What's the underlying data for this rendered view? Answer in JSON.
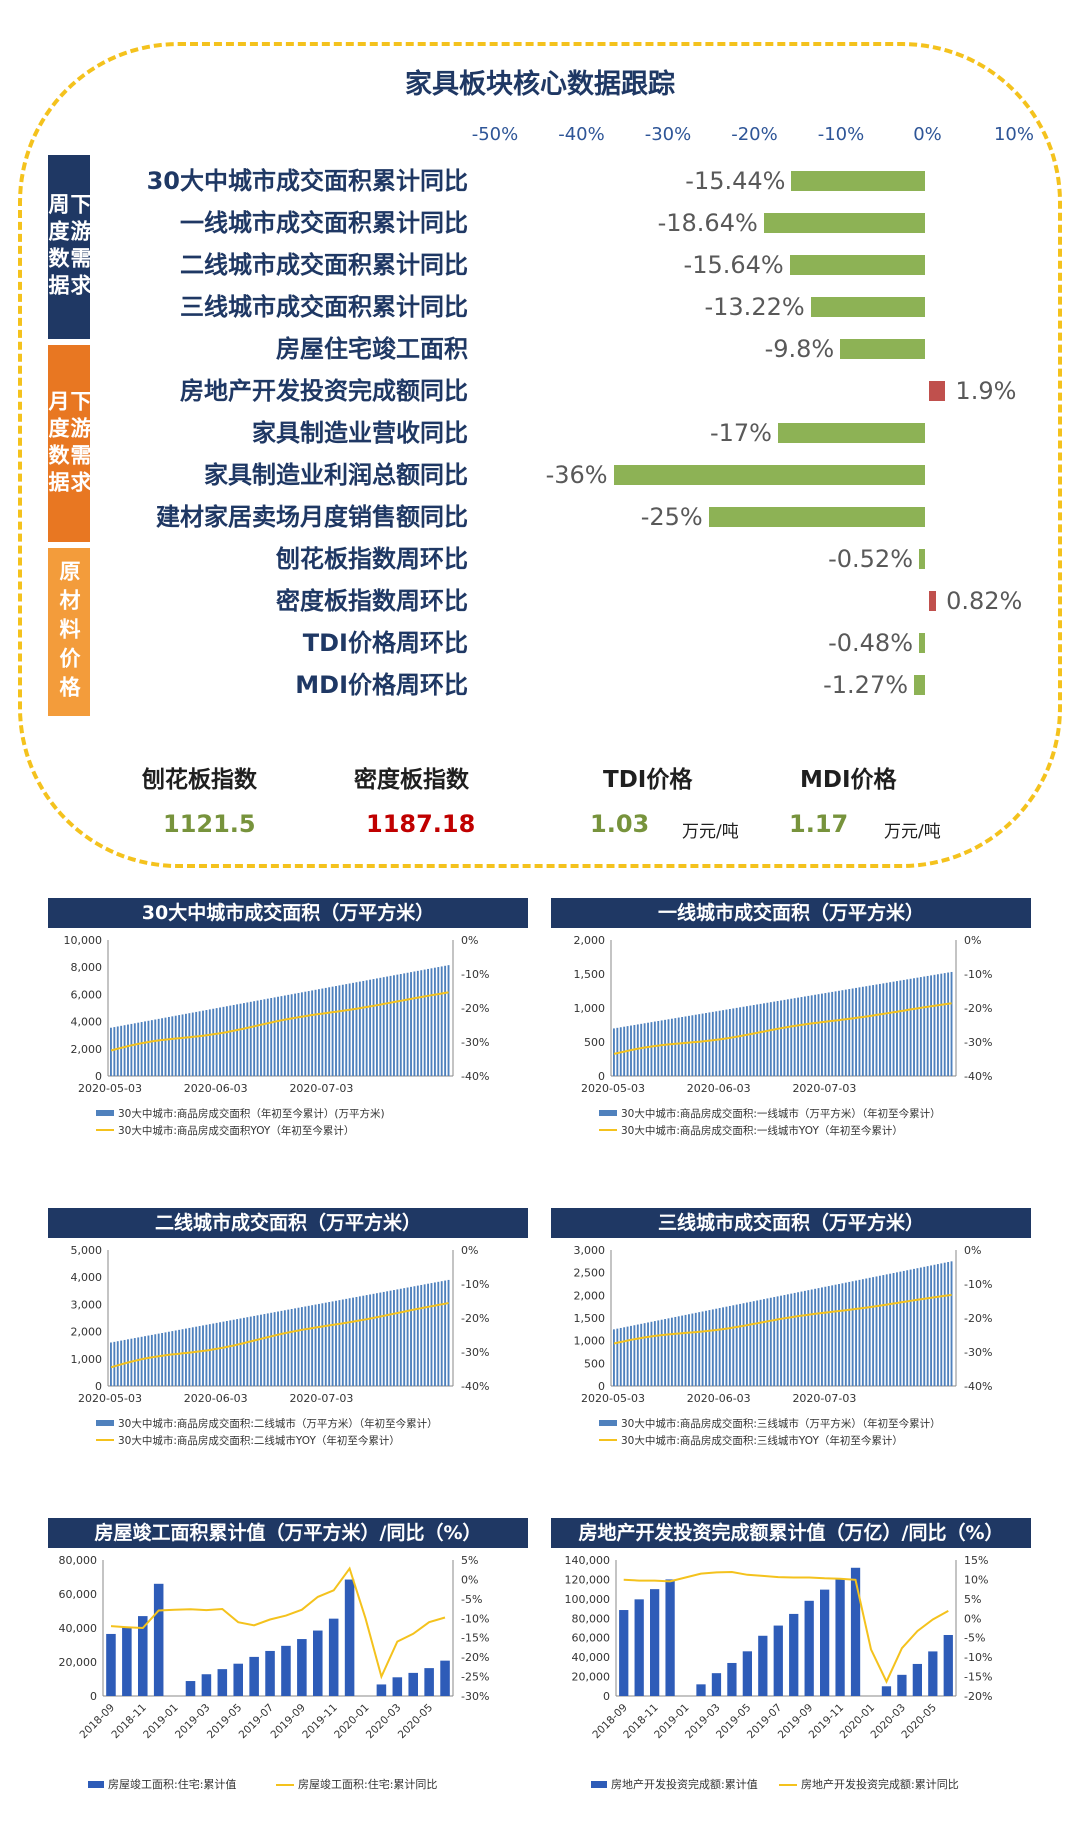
{
  "dashboard": {
    "title": "家具板块核心数据跟踪",
    "axis_ticks": [
      "-50%",
      "-40%",
      "-30%",
      "-20%",
      "-10%",
      "0%",
      "10%"
    ],
    "categories": [
      {
        "label": "周度数据",
        "label2": "下游需求",
        "color": "#1f3864"
      },
      {
        "label": "月度数据",
        "label2": "下游需求",
        "color": "#e87722"
      },
      {
        "label": "原材料价格",
        "color": "#f39c3b"
      }
    ],
    "rows": [
      {
        "label": "30大中城市成交面积累计同比",
        "value": -15.44,
        "text": "-15.44%"
      },
      {
        "label": "一线城市成交面积累计同比",
        "value": -18.64,
        "text": "-18.64%"
      },
      {
        "label": "二线城市成交面积累计同比",
        "value": -15.64,
        "text": "-15.64%"
      },
      {
        "label": "三线城市成交面积累计同比",
        "value": -13.22,
        "text": "-13.22%"
      },
      {
        "label": "房屋住宅竣工面积",
        "value": -9.8,
        "text": "-9.8%"
      },
      {
        "label": "房地产开发投资完成额同比",
        "value": 1.9,
        "text": "1.9%"
      },
      {
        "label": "家具制造业营收同比",
        "value": -17,
        "text": "-17%"
      },
      {
        "label": "家具制造业利润总额同比",
        "value": -36,
        "text": "-36%"
      },
      {
        "label": "建材家居卖场月度销售额同比",
        "value": -25,
        "text": "-25%"
      },
      {
        "label": "刨花板指数周环比",
        "value": -0.52,
        "text": "-0.52%"
      },
      {
        "label": "密度板指数周环比",
        "value": 0.82,
        "text": "0.82%"
      },
      {
        "label": "TDI价格周环比",
        "value": -0.48,
        "text": "-0.48%"
      },
      {
        "label": "MDI价格周环比",
        "value": -1.27,
        "text": "-1.27%"
      }
    ],
    "prices": [
      {
        "label": "刨花板指数",
        "value": "1121.5",
        "unit": "",
        "color": "#77933c"
      },
      {
        "label": "密度板指数",
        "value": "1187.18",
        "unit": "",
        "color": "#c00000"
      },
      {
        "label": "TDI价格",
        "value": "1.03",
        "unit": "万元/吨",
        "color": "#77933c"
      },
      {
        "label": "MDI价格",
        "value": "1.17",
        "unit": "万元/吨",
        "color": "#77933c"
      }
    ]
  },
  "chart_data": [
    {
      "type": "bar",
      "title": "30大中城市成交面积（万平方米）",
      "x_ticks": [
        "2020-05-03",
        "2020-06-03",
        "2020-07-03"
      ],
      "y_left_ticks": [
        "0",
        "2,000",
        "4,000",
        "6,000",
        "8,000",
        "10,000"
      ],
      "y_right_ticks": [
        "0%",
        "-10%",
        "-20%",
        "-30%",
        "-40%"
      ],
      "ylim_left": [
        0,
        10000
      ],
      "ylim_right": [
        -40,
        0
      ],
      "bar_color": "#4f81bd",
      "line_color": "#f4c21d",
      "n_days": 100,
      "series": [
        {
          "name": "30大中城市:商品房成交面积（年初至今累计）(万平方米)",
          "kind": "bar",
          "start": 3550,
          "end": 8150
        },
        {
          "name": "30大中城市:商品房成交面积YOY（年初至今累计）",
          "kind": "line",
          "start": -32.5,
          "end": -15.4
        }
      ]
    },
    {
      "type": "bar",
      "title": "一线城市成交面积（万平方米）",
      "x_ticks": [
        "2020-05-03",
        "2020-06-03",
        "2020-07-03"
      ],
      "y_left_ticks": [
        "0",
        "500",
        "1,000",
        "1,500",
        "2,000"
      ],
      "y_right_ticks": [
        "0%",
        "-10%",
        "-20%",
        "-30%",
        "-40%"
      ],
      "ylim_left": [
        0,
        2000
      ],
      "ylim_right": [
        -40,
        0
      ],
      "bar_color": "#4f81bd",
      "line_color": "#f4c21d",
      "n_days": 100,
      "series": [
        {
          "name": "30大中城市:商品房成交面积:一线城市（万平方米）（年初至今累计）",
          "kind": "bar",
          "start": 700,
          "end": 1530
        },
        {
          "name": "30大中城市:商品房成交面积:一线城市YOY（年初至今累计）",
          "kind": "line",
          "start": -33.5,
          "end": -18.6
        }
      ]
    },
    {
      "type": "bar",
      "title": "二线城市成交面积（万平方米）",
      "x_ticks": [
        "2020-05-03",
        "2020-06-03",
        "2020-07-03"
      ],
      "y_left_ticks": [
        "0",
        "1,000",
        "2,000",
        "3,000",
        "4,000",
        "5,000"
      ],
      "y_right_ticks": [
        "0%",
        "-10%",
        "-20%",
        "-30%",
        "-40%"
      ],
      "ylim_left": [
        0,
        5000
      ],
      "ylim_right": [
        -40,
        0
      ],
      "bar_color": "#4f81bd",
      "line_color": "#f4c21d",
      "n_days": 100,
      "series": [
        {
          "name": "30大中城市:商品房成交面积:二线城市（万平方米）（年初至今累计）",
          "kind": "bar",
          "start": 1600,
          "end": 3900
        },
        {
          "name": "30大中城市:商品房成交面积:二线城市YOY（年初至今累计）",
          "kind": "line",
          "start": -34.5,
          "end": -15.6
        }
      ]
    },
    {
      "type": "bar",
      "title": "三线城市成交面积（万平方米）",
      "x_ticks": [
        "2020-05-03",
        "2020-06-03",
        "2020-07-03"
      ],
      "y_left_ticks": [
        "0",
        "500",
        "1,000",
        "1,500",
        "2,000",
        "2,500",
        "3,000"
      ],
      "y_right_ticks": [
        "0%",
        "-10%",
        "-20%",
        "-30%",
        "-40%"
      ],
      "ylim_left": [
        0,
        3000
      ],
      "ylim_right": [
        -40,
        0
      ],
      "bar_color": "#4f81bd",
      "line_color": "#f4c21d",
      "n_days": 100,
      "series": [
        {
          "name": "30大中城市:商品房成交面积:三线城市（万平方米）（年初至今累计）",
          "kind": "bar",
          "start": 1250,
          "end": 2750
        },
        {
          "name": "30大中城市:商品房成交面积:三线城市YOY（年初至今累计）",
          "kind": "line",
          "start": -27.5,
          "end": -13.2
        }
      ]
    },
    {
      "type": "bar",
      "title": "房屋竣工面积累计值（万平方米）/同比（%）",
      "categories": [
        "2018-09",
        "2018-10",
        "2018-11",
        "2018-12",
        "2019-01",
        "2019-02",
        "2019-03",
        "2019-04",
        "2019-05",
        "2019-06",
        "2019-07",
        "2019-08",
        "2019-09",
        "2019-10",
        "2019-11",
        "2019-12",
        "2020-01",
        "2020-02",
        "2020-03",
        "2020-04",
        "2020-05",
        "2020-06"
      ],
      "x_ticks": [
        "2018-09",
        "2018-11",
        "2019-01",
        "2019-03",
        "2019-05",
        "2019-07",
        "2019-09",
        "2019-11",
        "2020-01",
        "2020-03",
        "2020-05"
      ],
      "y_left_ticks": [
        "0",
        "20,000",
        "40,000",
        "60,000",
        "80,000"
      ],
      "y_right_ticks": [
        "5%",
        "0%",
        "-5%",
        "-10%",
        "-15%",
        "-20%",
        "-25%",
        "-30%"
      ],
      "ylim_left": [
        0,
        80000
      ],
      "ylim_right": [
        -30,
        5
      ],
      "bar_color": "#2e5cb8",
      "line_color": "#f4c21d",
      "series": [
        {
          "name": "房屋竣工面积:住宅:累计值",
          "kind": "bar",
          "values": [
            36500,
            40500,
            47000,
            66000,
            null,
            8800,
            12800,
            15800,
            19000,
            23000,
            26500,
            29500,
            33500,
            38500,
            45500,
            68500,
            null,
            6800,
            11000,
            13600,
            16400,
            20800
          ]
        },
        {
          "name": "房屋竣工面积:住宅:累计同比",
          "kind": "line",
          "values": [
            -12.0,
            -12.3,
            -12.5,
            -8.0,
            -7.8,
            -7.7,
            -7.9,
            -7.6,
            -11.0,
            -11.8,
            -10.3,
            -9.3,
            -7.8,
            -4.5,
            -2.8,
            2.8,
            -10.0,
            -25.0,
            -16.0,
            -14.0,
            -11.0,
            -9.8
          ]
        }
      ]
    },
    {
      "type": "bar",
      "title": "房地产开发投资完成额累计值（万亿）/同比（%）",
      "categories": [
        "2018-09",
        "2018-10",
        "2018-11",
        "2018-12",
        "2019-01",
        "2019-02",
        "2019-03",
        "2019-04",
        "2019-05",
        "2019-06",
        "2019-07",
        "2019-08",
        "2019-09",
        "2019-10",
        "2019-11",
        "2019-12",
        "2020-01",
        "2020-02",
        "2020-03",
        "2020-04",
        "2020-05",
        "2020-06"
      ],
      "x_ticks": [
        "2018-09",
        "2018-11",
        "2019-01",
        "2019-03",
        "2019-05",
        "2019-07",
        "2019-09",
        "2019-11",
        "2020-01",
        "2020-03",
        "2020-05"
      ],
      "y_left_ticks": [
        "0",
        "20,000",
        "40,000",
        "60,000",
        "80,000",
        "100,000",
        "120,000",
        "140,000"
      ],
      "y_right_ticks": [
        "15%",
        "10%",
        "5%",
        "0%",
        "-5%",
        "-10%",
        "-15%",
        "-20%"
      ],
      "ylim_left": [
        0,
        140000
      ],
      "ylim_right": [
        -20,
        15
      ],
      "bar_color": "#2e5cb8",
      "line_color": "#f4c21d",
      "series": [
        {
          "name": "房地产开发投资完成额:累计值",
          "kind": "bar",
          "values": [
            88500,
            99500,
            110000,
            120000,
            null,
            12000,
            23500,
            34000,
            46000,
            62000,
            72500,
            84500,
            98000,
            109500,
            121000,
            132000,
            null,
            10000,
            21800,
            33000,
            45900,
            62800
          ]
        },
        {
          "name": "房地产开发投资完成额:累计同比",
          "kind": "line",
          "values": [
            9.9,
            9.7,
            9.7,
            9.5,
            10.5,
            11.5,
            11.8,
            11.9,
            11.2,
            10.9,
            10.6,
            10.5,
            10.5,
            10.3,
            10.2,
            9.9,
            -8.0,
            -16.3,
            -7.7,
            -3.3,
            -0.3,
            1.9
          ]
        }
      ]
    }
  ]
}
